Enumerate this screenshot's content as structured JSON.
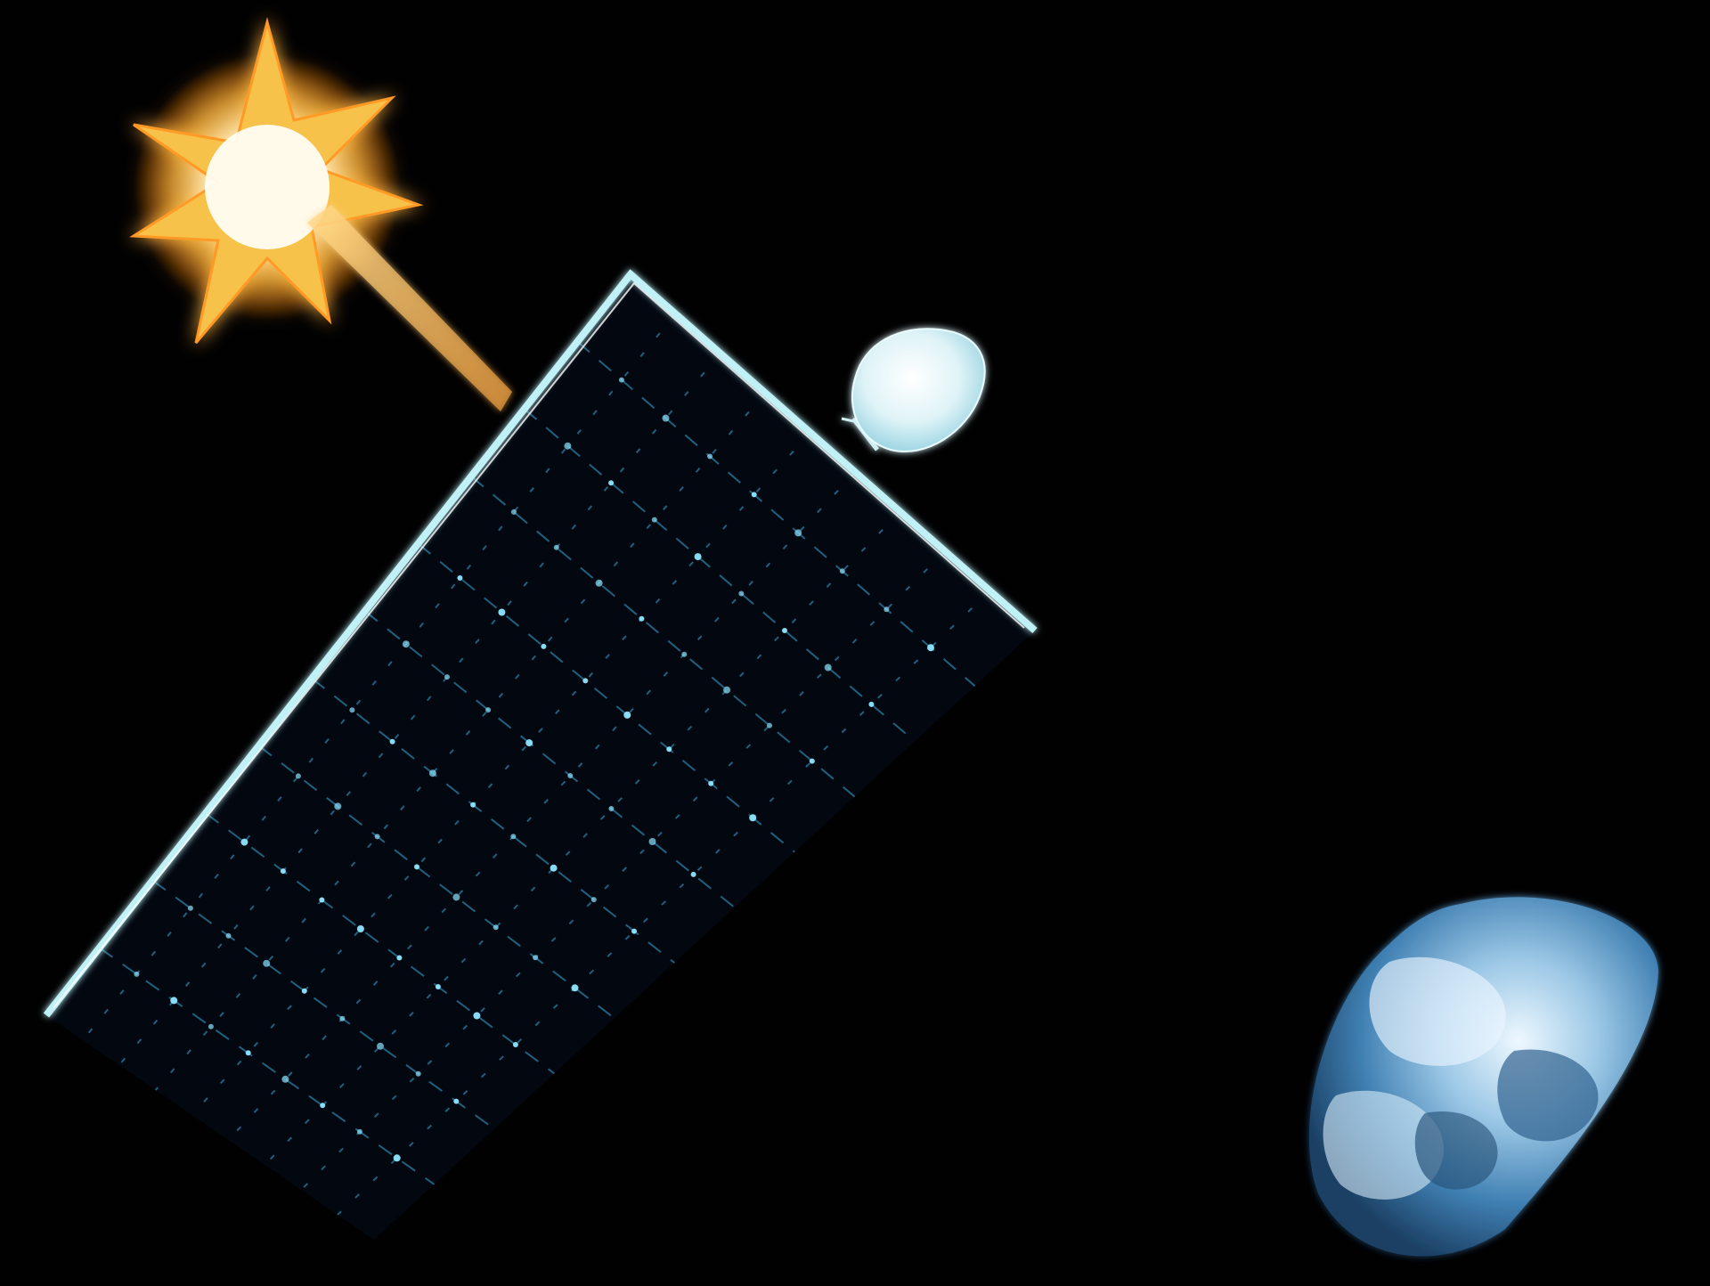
{
  "scene": {
    "subject": "space-solar-power-satellite",
    "background_color": "#010102",
    "sun": {
      "icon": "starburst-icon",
      "core_color": "#fffbe8",
      "ray_color": "#f7c24a",
      "glow_color": "#ff8c1a"
    },
    "beam": {
      "color": "#f3b25c"
    },
    "panel": {
      "frame_color": "#bff1f7",
      "grid_color": "#3aa9d6",
      "node_color": "#8fe6ff"
    },
    "module": {
      "color": "#e6f6f9"
    },
    "earth": {
      "ocean_color": "#2f6fa3",
      "cloud_color": "#eaf6ff",
      "shadow_color": "#05101c"
    }
  }
}
